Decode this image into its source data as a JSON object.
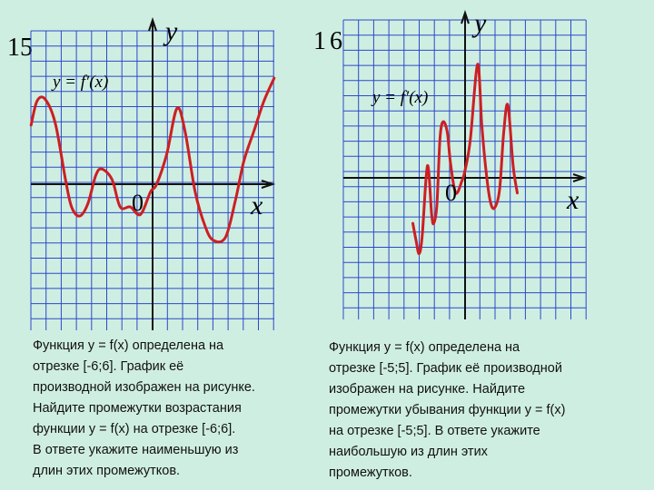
{
  "problems": [
    {
      "number": "15",
      "text": "Функция у = f(x) определена на\nотрезке [-6;6]. График её\nпроизводной изображен на рисунке.\nНайдите промежутки возрастания\nфункции у = f(x) на отрезке [-6;6].\n В ответе укажите наименьшую из\nдлин этих промежутков."
    },
    {
      "number": "16",
      "text": "Функция у = f(x) определена на\nотрезке [-5;5]. График её производной\nизображен на рисунке. Найдите\nпромежутки  убывания функции у = f(x)\nна отрезке [-5;5]. В ответе укажите\nнаибольшую из длин этих\nпромежутков."
    }
  ],
  "chart_data": [
    {
      "type": "line",
      "title": "y = f′(x)",
      "xlabel": "x",
      "ylabel": "y",
      "origin_label": "0",
      "grid": true,
      "xlim": [
        -6,
        6
      ],
      "series": [
        {
          "name": "y = f′(x)",
          "x": [
            -6,
            -5.7,
            -5.3,
            -4.8,
            -4.3,
            -4,
            -3.6,
            -3.2,
            -2.8,
            -2.5,
            -2,
            -1.6,
            -1.1,
            -0.6,
            -0.1,
            0.2,
            0.7,
            1.2,
            1.6,
            2.1,
            2.6,
            3,
            3.6,
            4.1,
            4.5,
            5,
            5.5,
            6
          ],
          "y": [
            3.9,
            5.5,
            5.6,
            4.0,
            0.3,
            -1.5,
            -2.1,
            -1.3,
            0.6,
            1.0,
            0.3,
            -1.5,
            -1.5,
            -2.0,
            -0.5,
            0.0,
            2.0,
            5.0,
            3.5,
            -0.5,
            -2.8,
            -3.7,
            -3.5,
            -1.0,
            1.5,
            3.5,
            5.5,
            7.0
          ]
        }
      ]
    },
    {
      "type": "line",
      "title": "y = f′(x)",
      "xlabel": "x",
      "ylabel": "y",
      "origin_label": "0",
      "grid": true,
      "xlim": [
        -5,
        5
      ],
      "series": [
        {
          "name": "y = f′(x)",
          "x": [
            -5,
            -4.7,
            -4.4,
            -4.1,
            -3.6,
            -3.2,
            -3,
            -2.7,
            -2.4,
            -2.1,
            -1.7,
            -1.4,
            -0.9,
            -0.3,
            0,
            0.5,
            1.2,
            1.6,
            2,
            2.4,
            2.8,
            3.3,
            3.7,
            4.1,
            4.6,
            5
          ],
          "y": [
            -3.0,
            -4.1,
            -5.0,
            -3.8,
            0.8,
            -2.4,
            -3.0,
            -1.8,
            2.6,
            3.7,
            3.0,
            1.0,
            -1.0,
            -0.2,
            0.5,
            2.5,
            7.5,
            3.5,
            0.5,
            -1.5,
            -2.0,
            -0.8,
            3.0,
            4.8,
            0.8,
            -1.0
          ]
        }
      ]
    }
  ]
}
